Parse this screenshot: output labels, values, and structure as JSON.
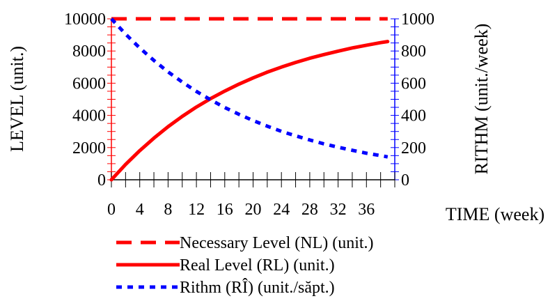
{
  "chart_data": {
    "type": "line",
    "title": "",
    "xlabel": "TIME (week)",
    "ylabel_left": "LEVEL (unit.)",
    "ylabel_right": "RITHM (unit./week)",
    "xlim": [
      0,
      40
    ],
    "ylim_left": [
      0,
      10000
    ],
    "ylim_right": [
      0,
      1000
    ],
    "x_ticks": [
      0,
      4,
      8,
      12,
      16,
      20,
      24,
      28,
      32,
      36
    ],
    "y_ticks_left": [
      0,
      2000,
      4000,
      6000,
      8000,
      10000
    ],
    "y_ticks_right": [
      0,
      200,
      400,
      600,
      800,
      1000
    ],
    "grid": false,
    "legend_position": "bottom",
    "series": [
      {
        "name": "Necessary Level (NL) (unit.)",
        "axis": "left",
        "style": "long-dash",
        "color": "#ff0000",
        "x": [
          0,
          39
        ],
        "values": [
          10000,
          10000
        ]
      },
      {
        "name": "Real Level (RL) (unit.)",
        "axis": "left",
        "style": "solid",
        "color": "#ff0000",
        "x": [
          0,
          2,
          4,
          6,
          8,
          10,
          12,
          14,
          16,
          18,
          20,
          22,
          24,
          26,
          28,
          30,
          32,
          34,
          36,
          38,
          39
        ],
        "values": [
          0,
          950,
          1810,
          2590,
          3300,
          3940,
          4520,
          5040,
          5510,
          5940,
          6330,
          6690,
          7000,
          7290,
          7550,
          7780,
          7990,
          8190,
          8360,
          8520,
          8590
        ]
      },
      {
        "name": "Rithm (RÎ) (unit./săpt.)",
        "axis": "right",
        "style": "dotted",
        "color": "#0000ff",
        "x": [
          0,
          2,
          4,
          6,
          8,
          10,
          12,
          14,
          16,
          18,
          20,
          22,
          24,
          26,
          28,
          30,
          32,
          34,
          36,
          38,
          39
        ],
        "values": [
          1000,
          905,
          819,
          741,
          670,
          607,
          549,
          497,
          449,
          407,
          368,
          333,
          301,
          273,
          247,
          223,
          202,
          183,
          165,
          150,
          142
        ]
      }
    ]
  }
}
